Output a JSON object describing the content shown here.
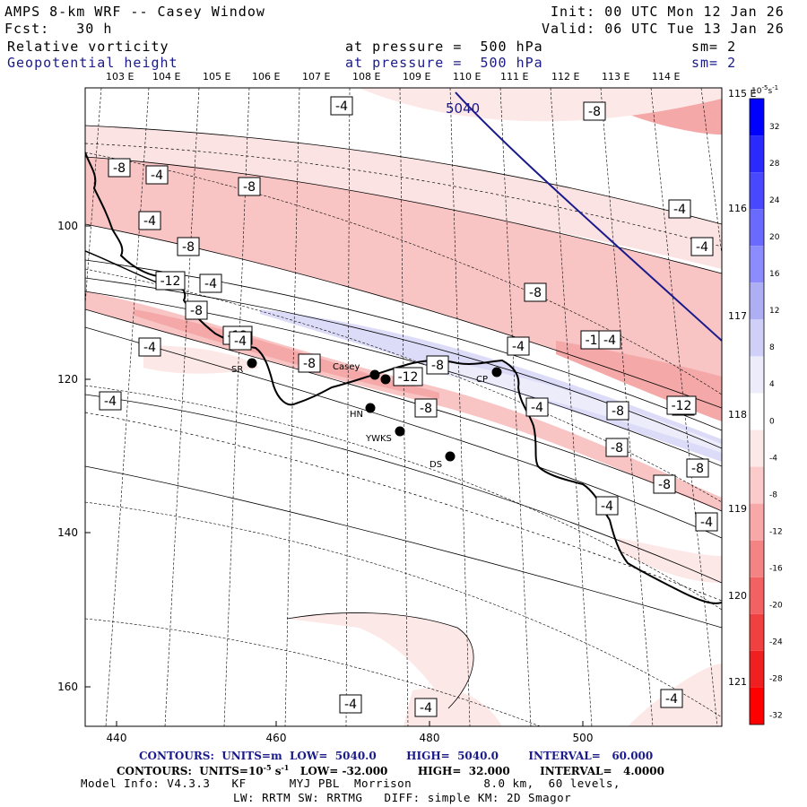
{
  "header": {
    "title": "AMPS 8-km WRF -- Casey Window",
    "init": "Init: 00 UTC Mon 12 Jan 26",
    "fcst": "Fcst:   30 h",
    "valid": "Valid: 06 UTC Tue 13 Jan 26",
    "field1_name": "Relative vorticity",
    "field1_level": "at pressure =  500 hPa",
    "field1_sm": "sm= 2",
    "field2_name": "Geopotential height",
    "field2_level": "at pressure =  500 hPa",
    "field2_sm": "sm= 2"
  },
  "axes": {
    "top_lon": [
      "103 E",
      "104 E",
      "105 E",
      "106 E",
      "107 E",
      "108 E",
      "109 E",
      "110 E",
      "111 E",
      "112 E",
      "113 E",
      "114 E"
    ],
    "right_lon": [
      "115 E",
      "116 E",
      "117 E",
      "118 E",
      "119 E",
      "120 E",
      "121 E"
    ],
    "x_ticks": [
      "440",
      "460",
      "480",
      "500"
    ],
    "y_ticks": [
      "100",
      "120",
      "140",
      "160"
    ]
  },
  "colorbar": {
    "unit": "10",
    "unit_exp": "-5",
    "unit_tail": "s",
    "unit_tail_exp": "-1",
    "labels": [
      "32",
      "28",
      "24",
      "20",
      "16",
      "12",
      "8",
      "4",
      "0",
      "-4",
      "-8",
      "-12",
      "-16",
      "-20",
      "-24",
      "-28",
      "-32"
    ],
    "colors": [
      "#0000ff",
      "#2a2aff",
      "#4848ff",
      "#6a6aff",
      "#8c8cff",
      "#aeaef5",
      "#cfcff8",
      "#ececfb",
      "#ffffff",
      "#fde8e8",
      "#fbcaca",
      "#f8a8a8",
      "#f48484",
      "#f26262",
      "#f04040",
      "#f02020",
      "#ff0000"
    ]
  },
  "stations": [
    {
      "name": "SR"
    },
    {
      "name": "Casey"
    },
    {
      "name": "HN"
    },
    {
      "name": "YWKS"
    },
    {
      "name": "DS"
    },
    {
      "name": "CP"
    }
  ],
  "height_contour_label": "5040",
  "vort_labels": [
    "-4",
    "-8",
    "-8",
    "-4",
    "-8",
    "-4",
    "-4",
    "-4",
    "-8",
    "-12",
    "-4",
    "-8",
    "-12",
    "-8",
    "-4",
    "-8",
    "-4",
    "-12",
    "-8",
    "-12",
    "-8",
    "-4",
    "-4",
    "-8",
    "-8",
    "-12",
    "-4",
    "-8",
    "-8",
    "-8",
    "-4",
    "-4",
    "-4",
    "-4",
    "-4",
    "-4"
  ],
  "footer": {
    "line1": "CONTOURS:  UNITS=m  LOW=  5040.0        HIGH=  5040.0        INTERVAL=   60.000",
    "line2_a": "CONTOURS:  UNITS=10",
    "line2_exp1": "-5",
    "line2_b": " s",
    "line2_exp2": "-1",
    "line2_c": "   LOW= -32.000        HIGH=  32.000        INTERVAL=   4.0000",
    "line3": "Model Info: V4.3.3   KF      MYJ PBL  Morrison          8.0 km,  60 levels,",
    "line4": "LW: RRTM SW: RRTMG   DIFF: simple KM: 2D Smagor"
  }
}
